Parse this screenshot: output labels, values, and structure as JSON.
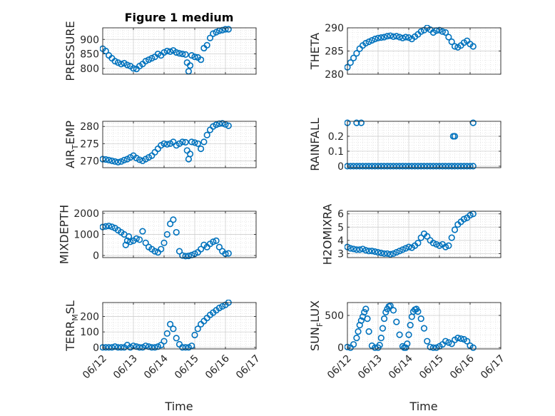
{
  "figure_title": "Figure 1 medium",
  "colors": {
    "marker": "#0072BD",
    "axis": "#262626",
    "grid": "#d9d9d9",
    "background": "#ffffff"
  },
  "chart_data": [
    {
      "type": "scatter",
      "ylabel": "PRESSURE",
      "ylabel_main": "PRESSURE",
      "ylabel_sub": "",
      "ylabel_after": "",
      "ylim": [
        780,
        940
      ],
      "yticks": [
        800,
        850,
        900
      ],
      "ytick_labels": [
        "800",
        "850",
        "900"
      ],
      "xlim": [
        0,
        5
      ],
      "xticks": [
        0,
        1,
        2,
        3,
        4,
        5
      ],
      "xtick_labels": [],
      "grid": true,
      "minor_grid": true,
      "x": [
        0.0,
        0.1,
        0.2,
        0.3,
        0.4,
        0.5,
        0.6,
        0.7,
        0.8,
        0.9,
        1.0,
        1.1,
        1.2,
        1.3,
        1.4,
        1.5,
        1.6,
        1.7,
        1.8,
        1.9,
        2.0,
        2.1,
        2.2,
        2.3,
        2.4,
        2.5,
        2.6,
        2.7,
        2.75,
        2.8,
        2.85,
        2.9,
        3.0,
        3.1,
        3.2,
        3.3,
        3.4,
        3.5,
        3.6,
        3.7,
        3.8,
        3.9,
        4.0,
        4.1
      ],
      "y": [
        868,
        860,
        845,
        835,
        825,
        820,
        815,
        818,
        812,
        808,
        800,
        798,
        808,
        815,
        825,
        830,
        835,
        840,
        850,
        845,
        855,
        860,
        858,
        862,
        855,
        852,
        850,
        848,
        820,
        790,
        810,
        845,
        840,
        838,
        830,
        870,
        880,
        905,
        920,
        925,
        930,
        932,
        935,
        935
      ]
    },
    {
      "type": "scatter",
      "ylabel": "THETA",
      "ylabel_main": "THETA",
      "ylabel_sub": "",
      "ylabel_after": "",
      "ylim": [
        280,
        290
      ],
      "yticks": [
        280,
        285,
        290
      ],
      "ytick_labels": [
        "280",
        "285",
        "290"
      ],
      "xlim": [
        0,
        5
      ],
      "xticks": [
        0,
        1,
        2,
        3,
        4,
        5
      ],
      "xtick_labels": [],
      "grid": true,
      "minor_grid": true,
      "x": [
        0.0,
        0.1,
        0.2,
        0.3,
        0.4,
        0.5,
        0.6,
        0.7,
        0.8,
        0.9,
        1.0,
        1.1,
        1.2,
        1.3,
        1.4,
        1.5,
        1.6,
        1.7,
        1.8,
        1.9,
        2.0,
        2.1,
        2.2,
        2.3,
        2.4,
        2.5,
        2.6,
        2.7,
        2.8,
        2.9,
        3.0,
        3.1,
        3.2,
        3.3,
        3.4,
        3.5,
        3.6,
        3.7,
        3.8,
        3.9,
        4.0,
        4.1
      ],
      "y": [
        281.5,
        282.5,
        283.5,
        284.5,
        285.5,
        286.2,
        286.7,
        287.0,
        287.3,
        287.6,
        287.8,
        287.9,
        288.0,
        288.2,
        288.3,
        288.1,
        288.2,
        288.0,
        287.8,
        288.0,
        287.9,
        287.6,
        288.1,
        288.6,
        289.2,
        289.5,
        290.0,
        289.6,
        289.0,
        289.4,
        289.5,
        289.2,
        289.0,
        288.0,
        287.0,
        286.0,
        285.8,
        286.2,
        286.8,
        287.2,
        286.5,
        286.0
      ]
    },
    {
      "type": "scatter",
      "ylabel": "AIR_TEMP",
      "ylabel_main": "AIR",
      "ylabel_sub": "T",
      "ylabel_after": "EMP",
      "ylim": [
        268,
        281.5
      ],
      "yticks": [
        270,
        275,
        280
      ],
      "ytick_labels": [
        "270",
        "275",
        "280"
      ],
      "xlim": [
        0,
        5
      ],
      "xticks": [
        0,
        1,
        2,
        3,
        4,
        5
      ],
      "xtick_labels": [],
      "grid": true,
      "minor_grid": true,
      "x": [
        0.0,
        0.1,
        0.2,
        0.3,
        0.4,
        0.5,
        0.6,
        0.7,
        0.8,
        0.9,
        1.0,
        1.1,
        1.2,
        1.3,
        1.4,
        1.5,
        1.6,
        1.7,
        1.8,
        1.9,
        2.0,
        2.1,
        2.2,
        2.3,
        2.4,
        2.5,
        2.6,
        2.7,
        2.75,
        2.8,
        2.85,
        2.9,
        3.0,
        3.1,
        3.2,
        3.3,
        3.4,
        3.5,
        3.6,
        3.7,
        3.8,
        3.9,
        4.0,
        4.1
      ],
      "y": [
        270.5,
        270.4,
        270.2,
        270.0,
        269.8,
        269.6,
        269.8,
        270.2,
        270.5,
        271.0,
        271.5,
        270.8,
        270.3,
        270.0,
        270.5,
        271.0,
        271.5,
        272.5,
        273.5,
        274.5,
        275.0,
        274.8,
        275.0,
        275.5,
        274.5,
        275.0,
        275.5,
        275.4,
        273.0,
        270.5,
        272.0,
        275.5,
        275.3,
        275.0,
        273.5,
        275.5,
        277.5,
        279.0,
        280.0,
        280.5,
        280.8,
        280.9,
        280.6,
        280.2
      ]
    },
    {
      "type": "scatter",
      "ylabel": "RAINFALL",
      "ylabel_main": "RAINFALL",
      "ylabel_sub": "",
      "ylabel_after": "",
      "ylim": [
        -0.01,
        0.3
      ],
      "yticks": [
        0,
        0.1,
        0.2
      ],
      "ytick_labels": [
        "0",
        "0.1",
        "0.2"
      ],
      "xlim": [
        0,
        5
      ],
      "xticks": [
        0,
        1,
        2,
        3,
        4,
        5
      ],
      "xtick_labels": [],
      "grid": true,
      "minor_grid": true,
      "x": [
        0.0,
        0.1,
        0.2,
        0.3,
        0.4,
        0.5,
        0.6,
        0.7,
        0.8,
        0.9,
        1.0,
        1.1,
        1.2,
        1.3,
        1.4,
        1.5,
        1.6,
        1.7,
        1.8,
        1.9,
        2.0,
        2.1,
        2.2,
        2.3,
        2.4,
        2.5,
        2.6,
        2.7,
        2.8,
        2.9,
        3.0,
        3.1,
        3.2,
        3.3,
        3.4,
        3.5,
        3.6,
        3.7,
        3.8,
        3.9,
        4.0,
        4.1,
        0.0,
        0.3,
        0.45,
        3.45,
        3.5,
        4.1
      ],
      "y": [
        0,
        0,
        0,
        0,
        0,
        0,
        0,
        0,
        0,
        0,
        0,
        0,
        0,
        0,
        0,
        0,
        0,
        0,
        0,
        0,
        0,
        0,
        0,
        0,
        0,
        0,
        0,
        0,
        0,
        0,
        0,
        0,
        0,
        0,
        0,
        0,
        0,
        0,
        0,
        0,
        0,
        0,
        0.29,
        0.29,
        0.29,
        0.2,
        0.2,
        0.29
      ]
    },
    {
      "type": "scatter",
      "ylabel": "MIXDEPTH",
      "ylabel_main": "MIXDEPTH",
      "ylabel_sub": "",
      "ylabel_after": "",
      "ylim": [
        -100,
        2100
      ],
      "yticks": [
        0,
        1000,
        2000
      ],
      "ytick_labels": [
        "0",
        "1000",
        "2000"
      ],
      "xlim": [
        0,
        5
      ],
      "xticks": [
        0,
        1,
        2,
        3,
        4,
        5
      ],
      "xtick_labels": [],
      "grid": true,
      "minor_grid": true,
      "x": [
        0.0,
        0.1,
        0.2,
        0.3,
        0.4,
        0.5,
        0.6,
        0.7,
        0.75,
        0.8,
        0.85,
        0.9,
        1.0,
        1.1,
        1.2,
        1.3,
        1.4,
        1.5,
        1.6,
        1.7,
        1.8,
        1.9,
        2.0,
        2.1,
        2.2,
        2.3,
        2.4,
        2.5,
        2.6,
        2.7,
        2.8,
        2.9,
        3.0,
        3.1,
        3.2,
        3.3,
        3.4,
        3.5,
        3.6,
        3.7,
        3.8,
        3.9,
        4.0,
        4.1
      ],
      "y": [
        1350,
        1380,
        1400,
        1360,
        1300,
        1200,
        1100,
        1000,
        500,
        700,
        900,
        650,
        700,
        800,
        750,
        1150,
        600,
        400,
        300,
        200,
        150,
        300,
        600,
        1000,
        1500,
        1700,
        1100,
        200,
        0,
        -30,
        -20,
        20,
        80,
        150,
        300,
        500,
        400,
        550,
        650,
        700,
        400,
        200,
        80,
        100
      ]
    },
    {
      "type": "scatter",
      "ylabel": "H2OMIXRA",
      "ylabel_main": "H2OMIXRA",
      "ylabel_sub": "",
      "ylabel_after": "",
      "ylim": [
        2.7,
        6.2
      ],
      "yticks": [
        3,
        4,
        5,
        6
      ],
      "ytick_labels": [
        "3",
        "4",
        "5",
        "6"
      ],
      "xlim": [
        0,
        5
      ],
      "xticks": [
        0,
        1,
        2,
        3,
        4,
        5
      ],
      "xtick_labels": [],
      "grid": true,
      "minor_grid": true,
      "x": [
        0.0,
        0.1,
        0.2,
        0.3,
        0.4,
        0.5,
        0.6,
        0.7,
        0.8,
        0.9,
        1.0,
        1.1,
        1.2,
        1.3,
        1.4,
        1.5,
        1.6,
        1.7,
        1.8,
        1.9,
        2.0,
        2.1,
        2.2,
        2.3,
        2.4,
        2.5,
        2.6,
        2.7,
        2.8,
        2.9,
        3.0,
        3.1,
        3.2,
        3.3,
        3.4,
        3.5,
        3.6,
        3.7,
        3.8,
        3.9,
        4.0,
        4.1
      ],
      "y": [
        3.5,
        3.4,
        3.35,
        3.3,
        3.3,
        3.35,
        3.25,
        3.2,
        3.2,
        3.15,
        3.1,
        3.05,
        3.0,
        3.0,
        2.95,
        3.0,
        3.1,
        3.2,
        3.3,
        3.4,
        3.5,
        3.45,
        3.6,
        3.8,
        4.2,
        4.5,
        4.3,
        4.0,
        3.8,
        3.7,
        3.6,
        3.7,
        3.5,
        3.6,
        4.2,
        4.8,
        5.2,
        5.4,
        5.6,
        5.7,
        5.9,
        6.0
      ]
    },
    {
      "type": "scatter",
      "ylabel": "TERR_MSL",
      "ylabel_main": "TERR",
      "ylabel_sub": "M",
      "ylabel_after": "SL",
      "ylim": [
        -10,
        290
      ],
      "yticks": [
        0,
        100,
        200
      ],
      "ytick_labels": [
        "0",
        "100",
        "200"
      ],
      "xlim": [
        0,
        5
      ],
      "xticks": [
        0,
        1,
        2,
        3,
        4,
        5
      ],
      "xtick_labels": [
        "06/12",
        "06/13",
        "06/14",
        "06/15",
        "06/16",
        "06/17"
      ],
      "grid": true,
      "minor_grid": true,
      "x": [
        0.0,
        0.1,
        0.2,
        0.3,
        0.4,
        0.5,
        0.6,
        0.7,
        0.8,
        0.9,
        1.0,
        1.1,
        1.2,
        1.3,
        1.4,
        1.5,
        1.6,
        1.7,
        1.8,
        1.9,
        2.0,
        2.1,
        2.2,
        2.3,
        2.4,
        2.5,
        2.6,
        2.7,
        2.8,
        2.9,
        3.0,
        3.1,
        3.2,
        3.3,
        3.4,
        3.5,
        3.6,
        3.7,
        3.8,
        3.9,
        4.0,
        4.1
      ],
      "y": [
        0,
        0,
        0,
        0,
        5,
        0,
        0,
        0,
        15,
        0,
        10,
        5,
        0,
        0,
        10,
        5,
        0,
        0,
        5,
        15,
        40,
        90,
        150,
        120,
        60,
        20,
        0,
        0,
        0,
        10,
        80,
        120,
        150,
        170,
        190,
        210,
        225,
        240,
        255,
        265,
        275,
        290
      ]
    },
    {
      "type": "scatter",
      "ylabel": "SUN_FLUX",
      "ylabel_main": "SUN",
      "ylabel_sub": "F",
      "ylabel_after": "LUX",
      "ylim": [
        -20,
        700
      ],
      "yticks": [
        0,
        500
      ],
      "ytick_labels": [
        "0",
        "500"
      ],
      "xlim": [
        0,
        5
      ],
      "xticks": [
        0,
        1,
        2,
        3,
        4,
        5
      ],
      "xtick_labels": [
        "06/12",
        "06/13",
        "06/14",
        "06/15",
        "06/16",
        "06/17"
      ],
      "grid": true,
      "minor_grid": true,
      "x": [
        0.0,
        0.1,
        0.2,
        0.3,
        0.35,
        0.4,
        0.45,
        0.5,
        0.55,
        0.6,
        0.65,
        0.7,
        0.8,
        0.9,
        1.0,
        1.05,
        1.1,
        1.15,
        1.2,
        1.25,
        1.3,
        1.35,
        1.4,
        1.5,
        1.6,
        1.7,
        1.8,
        1.85,
        1.9,
        1.95,
        2.0,
        2.05,
        2.1,
        2.15,
        2.2,
        2.25,
        2.3,
        2.4,
        2.5,
        2.6,
        2.7,
        2.8,
        2.9,
        3.0,
        3.1,
        3.2,
        3.3,
        3.4,
        3.5,
        3.6,
        3.7,
        3.8,
        3.9,
        4.0,
        4.1
      ],
      "y": [
        10,
        0,
        50,
        150,
        250,
        350,
        420,
        480,
        550,
        600,
        450,
        250,
        30,
        0,
        0,
        40,
        150,
        300,
        450,
        550,
        600,
        640,
        650,
        580,
        400,
        200,
        20,
        0,
        0,
        60,
        200,
        350,
        480,
        560,
        590,
        600,
        560,
        450,
        300,
        100,
        10,
        0,
        0,
        20,
        50,
        100,
        80,
        60,
        120,
        150,
        140,
        130,
        100,
        30,
        0
      ]
    }
  ],
  "xlabel": "Time"
}
